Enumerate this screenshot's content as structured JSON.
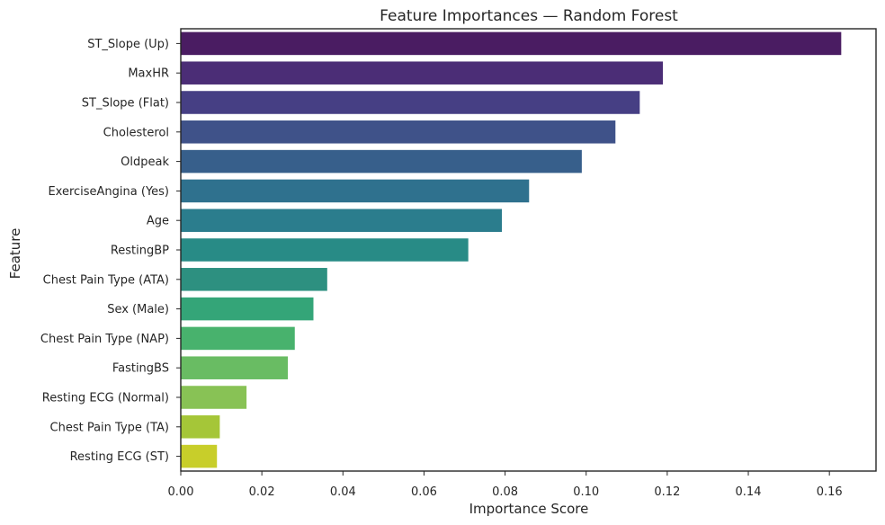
{
  "chart_data": {
    "type": "bar",
    "orientation": "horizontal",
    "title": "Feature Importances — Random Forest",
    "xlabel": "Importance Score",
    "ylabel": "Feature",
    "categories": [
      "ST_Slope (Up)",
      "MaxHR",
      "ST_Slope (Flat)",
      "Cholesterol",
      "Oldpeak",
      "ExerciseAngina (Yes)",
      "Age",
      "RestingBP",
      "Chest Pain Type (ATA)",
      "Sex (Male)",
      "Chest Pain Type (NAP)",
      "FastingBS",
      "Resting ECG (Normal)",
      "Chest Pain Type (TA)",
      "Resting ECG (ST)"
    ],
    "values": [
      0.163,
      0.119,
      0.1133,
      0.1073,
      0.099,
      0.086,
      0.0793,
      0.071,
      0.0362,
      0.0328,
      0.0282,
      0.0265,
      0.0163,
      0.0097,
      0.009
    ],
    "xlim": [
      0,
      0.1715
    ],
    "xticks": [
      0.0,
      0.02,
      0.04,
      0.06,
      0.08,
      0.1,
      0.12,
      0.14,
      0.16
    ],
    "xtick_labels": [
      "0.00",
      "0.02",
      "0.04",
      "0.06",
      "0.08",
      "0.10",
      "0.12",
      "0.14",
      "0.16"
    ],
    "grid": false,
    "colormap": "viridis",
    "colors": [
      "#4a1c62",
      "#4b2d76",
      "#463f84",
      "#3f5289",
      "#375f8b",
      "#2f718e",
      "#2b7d8d",
      "#288b86",
      "#2d9080",
      "#34a578",
      "#48b26d",
      "#69bc63",
      "#88c255",
      "#a5c638",
      "#c8ce2a"
    ]
  }
}
